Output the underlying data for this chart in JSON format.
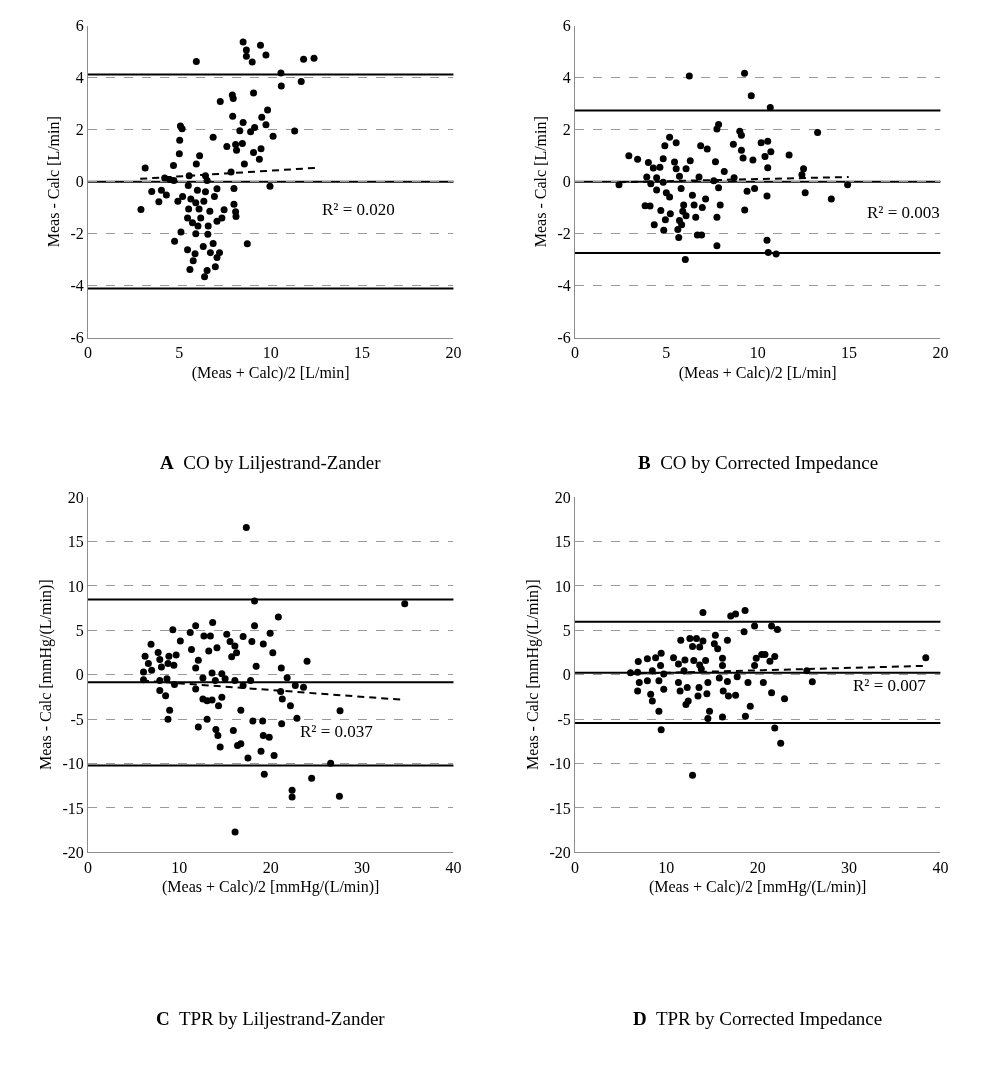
{
  "chart_data": [
    {
      "type": "scatter",
      "title": "A CO by Liljestrand-Zander",
      "xlabel": "(Meas + Calc)/2 [L/min]",
      "ylabel": "Meas - Calc [L/min]",
      "xlim": [
        0,
        20
      ],
      "xticks": [
        0,
        5,
        10,
        15,
        20
      ],
      "ylim": [
        -6,
        6
      ],
      "yticks": [
        -6,
        -4,
        -2,
        0,
        2,
        4,
        6
      ],
      "grid": "y",
      "marker": "circle",
      "series": [
        {
          "color": "#000000",
          "x": [
            8.49,
            9.44,
            8.67,
            8.67,
            9.74,
            8.99,
            5.93,
            11.8,
            12.37,
            10.56,
            10.58,
            11.67,
            9.06,
            7.9,
            7.95,
            7.24,
            9.83,
            9.51,
            7.92,
            8.49,
            9.74,
            9.12,
            8.31,
            8.9,
            11.31,
            10.13,
            5.06,
            5.15,
            6.85,
            5.02,
            7.6,
            8.08,
            8.45,
            8.13,
            9.47,
            9.06,
            5.0,
            6.11,
            9.38,
            3.13,
            4.68,
            5.93,
            8.56,
            7.83,
            4.2,
            4.47,
            4.7,
            5.54,
            6.43,
            6.52,
            9.96,
            3.49,
            4.02,
            4.29,
            2.9,
            3.88,
            4.92,
            5.18,
            5.49,
            5.99,
            6.43,
            7.06,
            6.92,
            7.99,
            5.63,
            5.9,
            6.34,
            6.08,
            5.51,
            7.99,
            8.08,
            8.1,
            7.45,
            6.67,
            5.45,
            5.72,
            6.17,
            6.02,
            6.58,
            7.06,
            7.33,
            5.09,
            5.9,
            6.56,
            6.85,
            4.74,
            8.72,
            5.45,
            6.31,
            6.7,
            5.86,
            7.2,
            7.06,
            5.76,
            6.97,
            5.58,
            6.52,
            6.38
          ],
          "values": [
            5.37,
            5.25,
            5.07,
            4.83,
            4.87,
            4.6,
            4.62,
            4.71,
            4.75,
            4.18,
            3.68,
            3.85,
            3.41,
            3.33,
            3.2,
            3.08,
            2.76,
            2.48,
            2.52,
            2.28,
            2.19,
            2.08,
            1.96,
            1.92,
            1.95,
            1.75,
            2.14,
            2.04,
            1.71,
            1.59,
            1.35,
            1.43,
            1.47,
            1.21,
            1.27,
            1.12,
            1.07,
            1.0,
            0.86,
            0.53,
            0.62,
            0.68,
            0.68,
            0.37,
            0.14,
            0.08,
            0.05,
            0.23,
            0.23,
            0.05,
            -0.18,
            -0.38,
            -0.33,
            -0.51,
            -1.07,
            -0.77,
            -0.75,
            -0.57,
            -0.15,
            -0.33,
            -0.39,
            -0.27,
            -0.57,
            -0.26,
            -0.67,
            -0.81,
            -0.75,
            -1.05,
            -1.05,
            -0.87,
            -1.16,
            -1.34,
            -1.08,
            -1.14,
            -1.4,
            -1.58,
            -1.4,
            -1.7,
            -1.7,
            -1.52,
            -1.4,
            -1.94,
            -2.0,
            -2.02,
            -2.38,
            -2.29,
            -2.39,
            -2.62,
            -2.49,
            -2.73,
            -2.77,
            -2.73,
            -2.92,
            -3.04,
            -3.27,
            -3.38,
            -3.42,
            -3.66
          ]
        },
        {
          "type": "line",
          "color": "#000000",
          "line_style": "dashed",
          "marker": "none",
          "x": [
            2.86,
            12.42
          ],
          "values": [
            0.11,
            0.53
          ]
        }
      ],
      "ref_lines": [
        {
          "axis": "y",
          "value": 4.12,
          "color": "#000000",
          "line_style": "solid"
        },
        {
          "axis": "y",
          "value": 0,
          "color": "#000000",
          "line_style": "solid"
        },
        {
          "axis": "y",
          "value": -4.11,
          "color": "#000000",
          "line_style": "solid"
        }
      ],
      "annotations": [
        "R² = 0.020"
      ]
    },
    {
      "type": "scatter",
      "title": "B CO by Corrected Impedance",
      "xlabel": "(Meas + Calc)/2 [L/min]",
      "ylabel": "Meas - Calc [L/min]",
      "xlim": [
        0,
        20
      ],
      "xticks": [
        0,
        5,
        10,
        15,
        20
      ],
      "ylim": [
        -6,
        6
      ],
      "yticks": [
        -6,
        -4,
        -2,
        0,
        2,
        4,
        6
      ],
      "grid": "y",
      "marker": "circle",
      "series": [
        {
          "color": "#000000",
          "x": [
            6.26,
            9.28,
            9.65,
            10.69,
            13.28,
            7.86,
            7.77,
            9.02,
            9.11,
            5.18,
            5.54,
            4.92,
            6.88,
            7.24,
            8.67,
            10.19,
            10.55,
            9.11,
            10.72,
            10.4,
            2.95,
            3.43,
            11.72,
            9.2,
            9.74,
            7.69,
            4.02,
            4.83,
            5.45,
            6.31,
            4.29,
            4.65,
            5.54,
            6.08,
            8.17,
            10.55,
            12.51,
            12.42,
            3.93,
            4.47,
            5.72,
            6.79,
            8.71,
            2.41,
            14.92,
            4.15,
            4.83,
            7.6,
            4.47,
            5.0,
            5.18,
            5.81,
            7.86,
            9.83,
            9.42,
            10.51,
            12.6,
            14.03,
            6.43,
            7.15,
            3.84,
            4.11,
            5.95,
            6.52,
            6.97,
            7.95,
            4.7,
            5.22,
            5.9,
            6.08,
            6.61,
            7.77,
            9.29,
            4.95,
            5.72,
            4.34,
            4.86,
            5.63,
            5.84,
            5.68,
            6.7,
            6.93,
            7.77,
            10.51,
            10.58,
            11.01,
            6.04
          ],
          "values": [
            4.07,
            4.17,
            3.31,
            2.85,
            1.89,
            2.2,
            2.03,
            1.94,
            1.79,
            1.71,
            1.5,
            1.38,
            1.38,
            1.26,
            1.44,
            1.5,
            1.56,
            1.21,
            1.15,
            0.97,
            1.0,
            0.86,
            1.03,
            0.91,
            0.83,
            0.77,
            0.74,
            0.88,
            0.76,
            0.81,
            0.53,
            0.56,
            0.5,
            0.5,
            0.39,
            0.54,
            0.5,
            0.27,
            0.18,
            0.15,
            0.21,
            0.18,
            0.15,
            -0.12,
            -0.12,
            -0.08,
            -0.02,
            0.04,
            -0.32,
            -0.43,
            -0.59,
            -0.26,
            -0.23,
            -0.26,
            -0.37,
            -0.55,
            -0.43,
            -0.67,
            -0.52,
            -0.67,
            -0.93,
            -0.94,
            -0.9,
            -0.9,
            -0.99,
            -0.9,
            -1.11,
            -1.23,
            -1.14,
            -1.31,
            -1.37,
            -1.37,
            -1.09,
            -1.46,
            -1.49,
            -1.66,
            -1.87,
            -1.84,
            -1.66,
            -2.15,
            -2.05,
            -2.05,
            -2.46,
            -2.25,
            -2.72,
            -2.78,
            -2.99
          ]
        },
        {
          "type": "line",
          "color": "#000000",
          "line_style": "dashed",
          "marker": "none",
          "x": [
            2.41,
            14.98
          ],
          "values": [
            -0.02,
            0.18
          ]
        }
      ],
      "ref_lines": [
        {
          "axis": "y",
          "value": 2.74,
          "color": "#000000",
          "line_style": "solid"
        },
        {
          "axis": "y",
          "value": 0,
          "color": "#000000",
          "line_style": "solid"
        },
        {
          "axis": "y",
          "value": -2.74,
          "color": "#000000",
          "line_style": "solid"
        }
      ],
      "annotations": [
        "R² = 0.003"
      ]
    },
    {
      "type": "scatter",
      "title": "C TPR by Liljestrand-Zander",
      "xlabel": "(Meas + Calc)/2 [mmHg/(L/min)]",
      "ylabel": "Meas - Calc [mmHg/(L/min)]",
      "xlim": [
        0,
        40
      ],
      "xticks": [
        0,
        10,
        20,
        30,
        40
      ],
      "ylim": [
        -20,
        20
      ],
      "yticks": [
        -20,
        -15,
        -10,
        -5,
        0,
        5,
        10,
        15,
        20
      ],
      "grid": "y",
      "marker": "circle",
      "series": [
        {
          "color": "#000000",
          "x": [
            17.33,
            18.23,
            34.67,
            20.84,
            9.29,
            11.79,
            13.65,
            11.19,
            12.69,
            13.4,
            15.19,
            16.98,
            18.23,
            19.94,
            10.11,
            15.55,
            16.08,
            17.94,
            19.19,
            6.9,
            7.68,
            8.86,
            9.65,
            11.33,
            13.22,
            14.12,
            15.73,
            16.26,
            20.23,
            23.98,
            6.25,
            6.61,
            7.86,
            8.76,
            9.4,
            12.08,
            11.79,
            18.41,
            21.16,
            6.08,
            6.97,
            8.04,
            13.58,
            14.65,
            6.08,
            7.86,
            8.65,
            9.47,
            12.58,
            13.94,
            15.01,
            16.08,
            16.98,
            17.8,
            21.8,
            22.69,
            23.59,
            11.79,
            7.86,
            8.5,
            21.09,
            21.27,
            12.58,
            13.04,
            13.58,
            14.29,
            14.65,
            22.16,
            27.59,
            8.94,
            8.76,
            16.73,
            13.04,
            18.05,
            19.12,
            22.87,
            21.2,
            12.08,
            14.0,
            14.22,
            15.91,
            19.19,
            19.84,
            14.47,
            16.37,
            16.73,
            18.94,
            20.37,
            17.51,
            26.56,
            19.3,
            24.48,
            22.34,
            22.34,
            27.52,
            16.1
          ],
          "values": [
            16.58,
            8.29,
            7.98,
            6.5,
            5.06,
            5.51,
            5.89,
            4.75,
            4.37,
            4.37,
            4.56,
            4.3,
            5.51,
            4.68,
            3.8,
            3.73,
            3.23,
            3.73,
            3.46,
            3.42,
            2.51,
            2.09,
            2.21,
            2.85,
            2.66,
            3.04,
            2.02,
            2.47,
            2.47,
            1.52,
            2.09,
            1.25,
            1.71,
            1.25,
            1.06,
            1.63,
            0.76,
            0.95,
            0.76,
            0.3,
            0.49,
            0.87,
            0.19,
            0.11,
            -0.57,
            -0.65,
            -0.46,
            -1.1,
            -0.38,
            -0.65,
            -0.46,
            -0.65,
            -1.22,
            -0.65,
            -0.34,
            -1.22,
            -1.41,
            -1.6,
            -1.79,
            -2.36,
            -1.9,
            -2.74,
            -2.74,
            -2.93,
            -2.85,
            -3.5,
            -2.55,
            -3.5,
            -4.07,
            -3.99,
            -5.02,
            -3.99,
            -5.02,
            -5.21,
            -5.21,
            -4.9,
            -5.51,
            -5.89,
            -6.16,
            -6.84,
            -6.27,
            -6.84,
            -7.03,
            -8.14,
            -7.98,
            -7.76,
            -8.63,
            -9.09,
            -9.39,
            -9.96,
            -11.22,
            -11.67,
            -13.0,
            -13.76,
            -13.69,
            -17.7
          ]
        },
        {
          "type": "line",
          "color": "#000000",
          "line_style": "dashed",
          "marker": "none",
          "x": [
            5.9,
            34.3
          ],
          "values": [
            -0.65,
            -2.81
          ]
        }
      ],
      "ref_lines": [
        {
          "axis": "y",
          "value": 8.48,
          "color": "#000000",
          "line_style": "solid"
        },
        {
          "axis": "y",
          "value": -0.84,
          "color": "#000000",
          "line_style": "solid"
        },
        {
          "axis": "y",
          "value": -10.23,
          "color": "#000000",
          "line_style": "solid"
        }
      ],
      "annotations": [
        "R² = 0.037"
      ]
    },
    {
      "type": "scatter",
      "title": "D TPR by Corrected Impedance",
      "xlabel": "(Meas + Calc)/2 [mmHg/(L/min)]",
      "ylabel": "Meas - Calc [mmHg/(L/min)]",
      "xlim": [
        0,
        40
      ],
      "xticks": [
        0,
        10,
        20,
        30,
        40
      ],
      "ylim": [
        -20,
        20
      ],
      "yticks": [
        -20,
        -15,
        -10,
        -5,
        0,
        5,
        10,
        15,
        20
      ],
      "grid": "y",
      "marker": "circle",
      "series": [
        {
          "color": "#000000",
          "x": [
            14.01,
            17.05,
            17.58,
            18.62,
            19.66,
            21.52,
            22.16,
            18.51,
            11.58,
            12.58,
            13.3,
            14.01,
            15.37,
            16.69,
            12.87,
            13.65,
            15.26,
            15.62,
            9.44,
            20.44,
            20.8,
            21.87,
            7.93,
            6.93,
            8.83,
            10.79,
            12.04,
            13.01,
            14.3,
            16.15,
            19.84,
            21.34,
            38.4,
            9.37,
            11.33,
            13.65,
            16.15,
            19.66,
            6.08,
            6.86,
            8.47,
            9.72,
            11.94,
            13.83,
            15.8,
            17.76,
            18.94,
            25.38,
            25.98,
            7.04,
            7.93,
            9.19,
            9.72,
            11.33,
            12.29,
            13.58,
            14.55,
            16.69,
            6.86,
            8.29,
            8.47,
            11.51,
            13.47,
            14.44,
            16.23,
            16.8,
            17.58,
            20.62,
            21.52,
            22.94,
            12.15,
            12.4,
            14.73,
            14.55,
            16.15,
            19.19,
            18.66,
            9.19,
            9.44,
            21.87,
            22.52,
            12.87
          ],
          "values": [
            7.0,
            6.62,
            6.84,
            7.22,
            5.48,
            5.48,
            5.1,
            4.83,
            3.88,
            4.07,
            4.07,
            3.8,
            4.45,
            3.88,
            3.19,
            3.12,
            3.5,
            2.93,
            2.43,
            2.28,
            2.28,
            2.05,
            1.79,
            1.48,
            1.9,
            1.9,
            1.67,
            1.6,
            1.6,
            1.86,
            1.86,
            1.52,
            1.9,
            1.03,
            1.22,
            1.1,
            1.03,
            1.03,
            0.23,
            0.27,
            0.46,
            0.08,
            0.46,
            0.65,
            -0.38,
            -0.23,
            -0.87,
            0.46,
            -0.8,
            -0.87,
            -0.68,
            -0.68,
            -1.63,
            -0.87,
            -1.44,
            -1.44,
            -0.87,
            -0.76,
            -1.83,
            -2.21,
            -2.97,
            -1.83,
            -2.4,
            -2.13,
            -1.83,
            -2.4,
            -2.32,
            -0.87,
            -2.02,
            -2.7,
            -3.35,
            -2.97,
            -4.11,
            -4.94,
            -4.75,
            -3.54,
            -4.68,
            -4.11,
            -6.2,
            -6.01,
            -7.72,
            -11.33
          ]
        },
        {
          "type": "line",
          "color": "#000000",
          "line_style": "dashed",
          "marker": "none",
          "x": [
            5.8,
            38.4
          ],
          "values": [
            0.1,
            1.0
          ]
        }
      ],
      "ref_lines": [
        {
          "axis": "y",
          "value": 5.97,
          "color": "#000000",
          "line_style": "solid"
        },
        {
          "axis": "y",
          "value": 0.23,
          "color": "#000000",
          "line_style": "solid"
        },
        {
          "axis": "y",
          "value": -5.44,
          "color": "#000000",
          "line_style": "solid"
        }
      ],
      "annotations": [
        "R² = 0.007"
      ]
    }
  ]
}
